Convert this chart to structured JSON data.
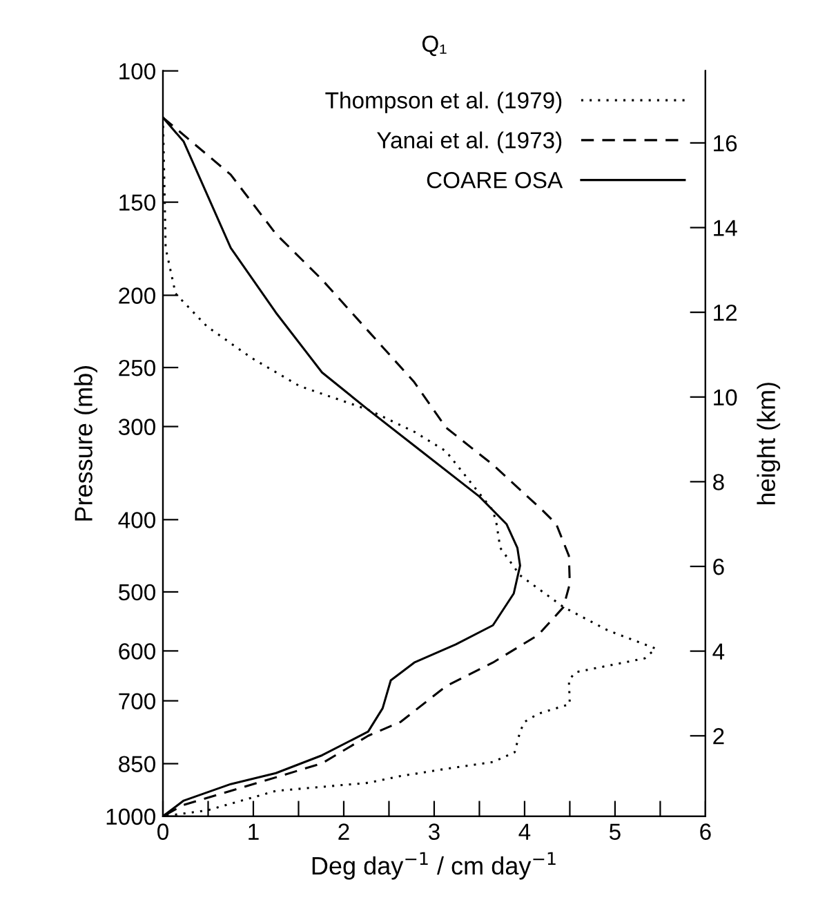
{
  "chart_data": {
    "type": "line",
    "title": "Q₁",
    "xlabel": "Deg day$^{−1}$ / cm day$^{−1}$",
    "ylabel": "Pressure (mb)",
    "y2label": "height (km)",
    "xlim": [
      0,
      6
    ],
    "xticks": [
      0,
      {
        "value": 0.5,
        "label": null
      },
      1,
      {
        "value": 1.5,
        "label": null
      },
      2,
      {
        "value": 2.5,
        "label": null
      },
      3,
      {
        "value": 3.5,
        "label": null
      },
      4,
      {
        "value": 4.5,
        "label": null
      },
      5,
      {
        "value": 5.5,
        "label": null
      },
      6
    ],
    "ylim": [
      1000,
      100
    ],
    "log": "y",
    "yticks": [
      100,
      150,
      200,
      250,
      300,
      400,
      500,
      600,
      700,
      850,
      1000
    ],
    "y2lim": [
      0.1,
      17.7
    ],
    "y2ticks": [
      2,
      4,
      6,
      8,
      10,
      12,
      14,
      16
    ],
    "grid": false,
    "legend": "top right",
    "marker": "none",
    "series": [
      {
        "name": "Thompson et al. (1979)",
        "axis": "y2",
        "color": "#000000",
        "line_style": "dotted",
        "x": [
          0,
          0.02,
          0.03,
          0.14,
          0.49,
          0.99,
          1.51,
          2.27,
          2.78,
          3.13,
          3.65,
          3.69,
          3.73,
          3.95,
          4.43,
          4.92,
          5.45,
          5.33,
          4.56,
          4.49,
          4.5,
          4.15,
          4.0,
          3.95,
          3.89,
          3.65,
          3.13,
          2.63,
          2.27,
          1.25,
          0.49,
          0
        ],
        "values": [
          16.6,
          14.63,
          13.52,
          12.44,
          11.66,
          10.91,
          10.26,
          9.7,
          9.18,
          8.72,
          7.32,
          7.0,
          6.44,
          5.79,
          5.04,
          4.49,
          4.06,
          3.83,
          3.5,
          3.31,
          2.75,
          2.52,
          2.33,
          2.1,
          1.61,
          1.38,
          1.22,
          1.05,
          0.89,
          0.7,
          0.24,
          0.1
        ]
      },
      {
        "name": "Yanai et al. (1973)",
        "axis": "y2",
        "color": "#000000",
        "line_style": "dashed",
        "x": [
          0,
          0.75,
          1.25,
          1.76,
          2.27,
          2.78,
          3.13,
          3.65,
          4.2,
          4.35,
          4.49,
          4.5,
          4.43,
          4.15,
          3.65,
          3.13,
          2.63,
          2.27,
          1.76,
          1.25,
          0.75,
          0.23,
          0
        ],
        "values": [
          16.6,
          15.25,
          13.85,
          12.77,
          11.56,
          10.35,
          9.28,
          8.4,
          7.32,
          7.0,
          6.25,
          5.59,
          5.04,
          4.38,
          3.73,
          3.17,
          2.33,
          2.0,
          1.35,
          1.02,
          0.7,
          0.37,
          0.1
        ]
      },
      {
        "name": "COARE OSA",
        "axis": "y2",
        "color": "#000000",
        "line_style": "solid",
        "x": [
          0,
          0.23,
          0.75,
          1.25,
          1.76,
          2.27,
          2.78,
          3.5,
          3.8,
          3.92,
          3.95,
          3.88,
          3.65,
          3.24,
          2.78,
          2.52,
          2.43,
          2.27,
          1.76,
          1.25,
          0.75,
          0.23,
          0
        ],
        "values": [
          16.6,
          16.03,
          13.52,
          11.99,
          10.58,
          9.7,
          8.85,
          7.65,
          7.0,
          6.44,
          6.02,
          5.36,
          4.61,
          4.16,
          3.73,
          3.31,
          2.65,
          2.1,
          1.54,
          1.12,
          0.86,
          0.47,
          0.1
        ]
      }
    ]
  }
}
